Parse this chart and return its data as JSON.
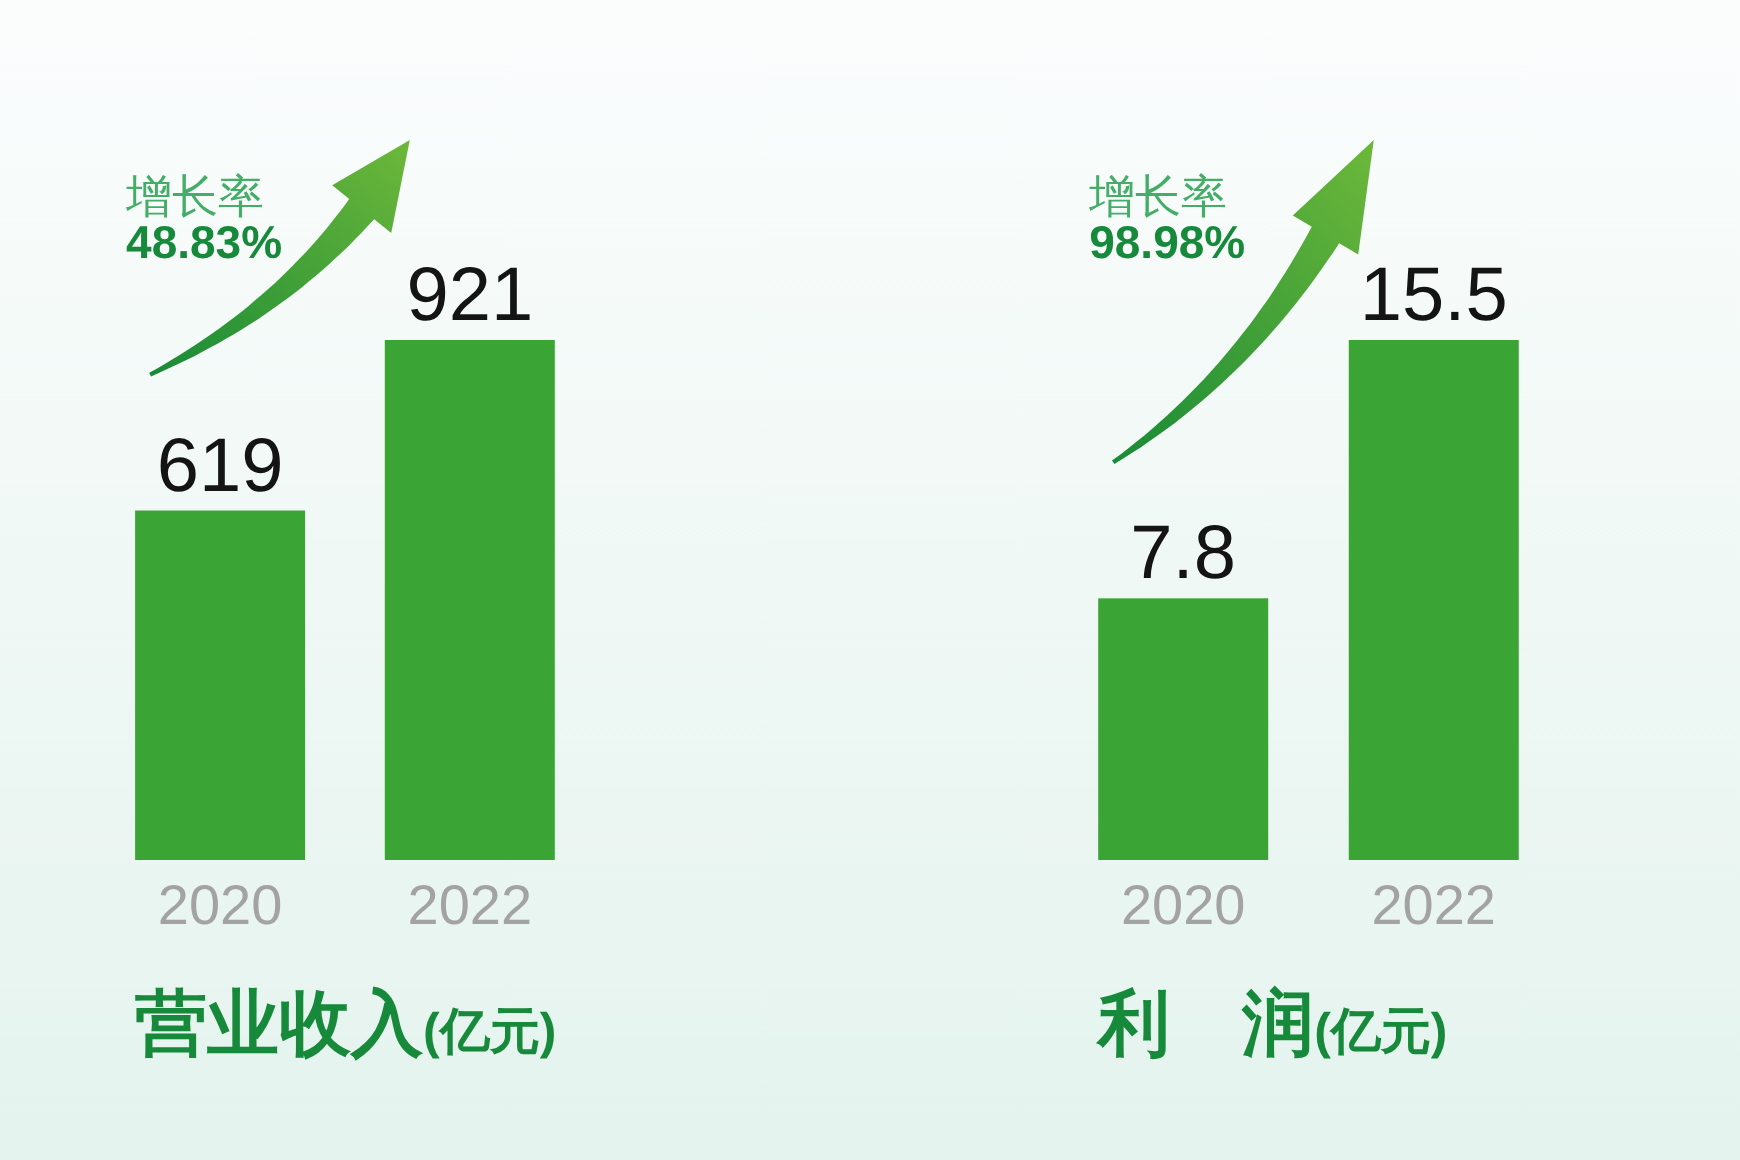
{
  "chart_data": [
    {
      "type": "bar",
      "title": "营业收入",
      "subtitle": "(亿元)",
      "categories": [
        "2020",
        "2022"
      ],
      "values": [
        619,
        921
      ],
      "color": "#3aa535",
      "data_labels": true,
      "annotations": [
        "增长率",
        "48.83%"
      ]
    },
    {
      "type": "bar",
      "title": "利　润",
      "subtitle": "(亿元)",
      "categories": [
        "2020",
        "2022"
      ],
      "values": [
        7.8,
        15.5
      ],
      "color": "#3aa535",
      "data_labels": true,
      "annotations": [
        "增长率",
        "98.98%"
      ]
    }
  ]
}
